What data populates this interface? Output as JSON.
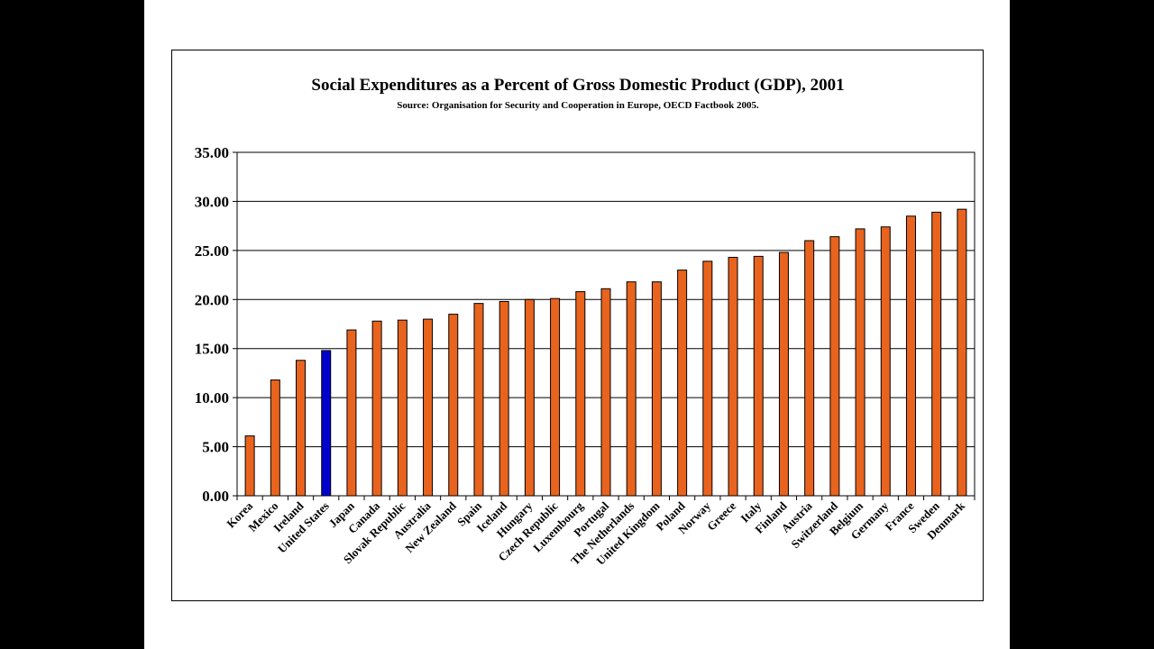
{
  "chart_data": {
    "type": "bar",
    "title": "Social Expenditures as a Percent of Gross Domestic Product (GDP), 2001",
    "subtitle": "Source: Organisation for Security and Cooperation in Europe, OECD Factbook 2005.",
    "xlabel": "",
    "ylabel": "",
    "ylim": [
      0,
      35
    ],
    "yticks": [
      "0.00",
      "5.00",
      "10.00",
      "15.00",
      "20.00",
      "25.00",
      "30.00",
      "35.00"
    ],
    "grid": "horizontal",
    "bar_color": "#E8641E",
    "highlight_color": "#0000CC",
    "highlight_category": "United States",
    "categories": [
      "Korea",
      "Mexico",
      "Ireland",
      "United States",
      "Japan",
      "Canada",
      "Slovak Republic",
      "Australia",
      "New Zealand",
      "Spain",
      "Iceland",
      "Hungary",
      "Czech Republic",
      "Luxembourg",
      "Portugal",
      "The Netherlands",
      "United Kingdom",
      "Poland",
      "Norway",
      "Greece",
      "Italy",
      "Finland",
      "Austria",
      "Switzerland",
      "Belgium",
      "Germany",
      "France",
      "Sweden",
      "Denmark"
    ],
    "values": [
      6.1,
      11.8,
      13.8,
      14.8,
      16.9,
      17.8,
      17.9,
      18.0,
      18.5,
      19.6,
      19.8,
      20.0,
      20.1,
      20.8,
      21.1,
      21.8,
      21.8,
      23.0,
      23.9,
      24.3,
      24.4,
      24.8,
      26.0,
      26.4,
      27.2,
      27.4,
      28.5,
      28.9,
      29.2
    ]
  }
}
